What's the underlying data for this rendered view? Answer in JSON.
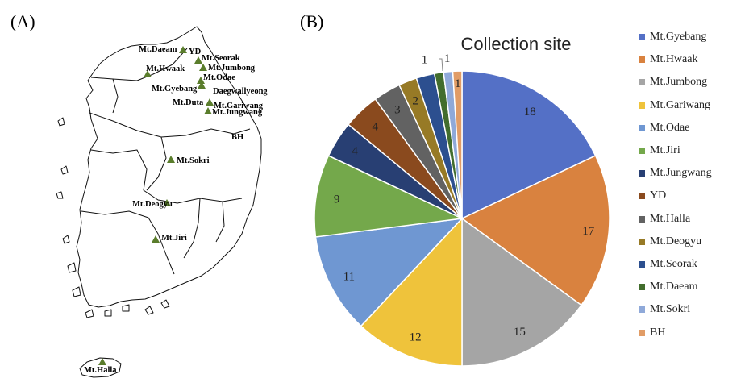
{
  "panels": {
    "a_label": "(A)",
    "b_label": "(B)"
  },
  "map": {
    "sites": [
      {
        "name": "Mt.Daeam",
        "marker": true
      },
      {
        "name": "YD",
        "marker": false
      },
      {
        "name": "Mt.Seorak",
        "marker": true
      },
      {
        "name": "Mt.Jumbong",
        "marker": true
      },
      {
        "name": "Mt.Hwaak",
        "marker": true
      },
      {
        "name": "Mt.Odae",
        "marker": true
      },
      {
        "name": "Mt.Gyebang",
        "marker": true
      },
      {
        "name": "Daegwallyeong",
        "marker": false
      },
      {
        "name": "Mt.Duta",
        "marker": false
      },
      {
        "name": "Mt.Gariwang",
        "marker": true
      },
      {
        "name": "Mt.Jungwang",
        "marker": true
      },
      {
        "name": "BH",
        "marker": false
      },
      {
        "name": "Mt.Sokri",
        "marker": true
      },
      {
        "name": "Mt.Deogyu",
        "marker": true
      },
      {
        "name": "Mt.Jiri",
        "marker": true
      },
      {
        "name": "Mt.Halla",
        "marker": true
      }
    ],
    "marker_color": "#5a7d2c"
  },
  "chart_data": {
    "type": "pie",
    "title": "Collection site",
    "categories": [
      "Mt.Gyebang",
      "Mt.Hwaak",
      "Mt.Jumbong",
      "Mt.Gariwang",
      "Mt.Odae",
      "Mt.Jiri",
      "Mt.Jungwang",
      "YD",
      "Mt.Halla",
      "Mt.Deogyu",
      "Mt.Seorak",
      "Mt.Daeam",
      "Mt.Sokri",
      "BH"
    ],
    "values": [
      18,
      17,
      15,
      12,
      11,
      9,
      4,
      4,
      3,
      2,
      2,
      1,
      1,
      1
    ],
    "data_labels": [
      "18",
      "17",
      "15",
      "12",
      "11",
      "9",
      "4",
      "4",
      "3",
      "2",
      "",
      "1",
      "1",
      "1"
    ],
    "colors": [
      "#5470c6",
      "#d9823f",
      "#a5a5a5",
      "#efc33b",
      "#6f97d2",
      "#74a84b",
      "#283f73",
      "#8a4a1e",
      "#626262",
      "#977a26",
      "#2c4f8f",
      "#426d2d",
      "#8fa9d9",
      "#e19c66"
    ],
    "legend_position": "right",
    "start_angle_deg": 0,
    "direction": "clockwise"
  }
}
